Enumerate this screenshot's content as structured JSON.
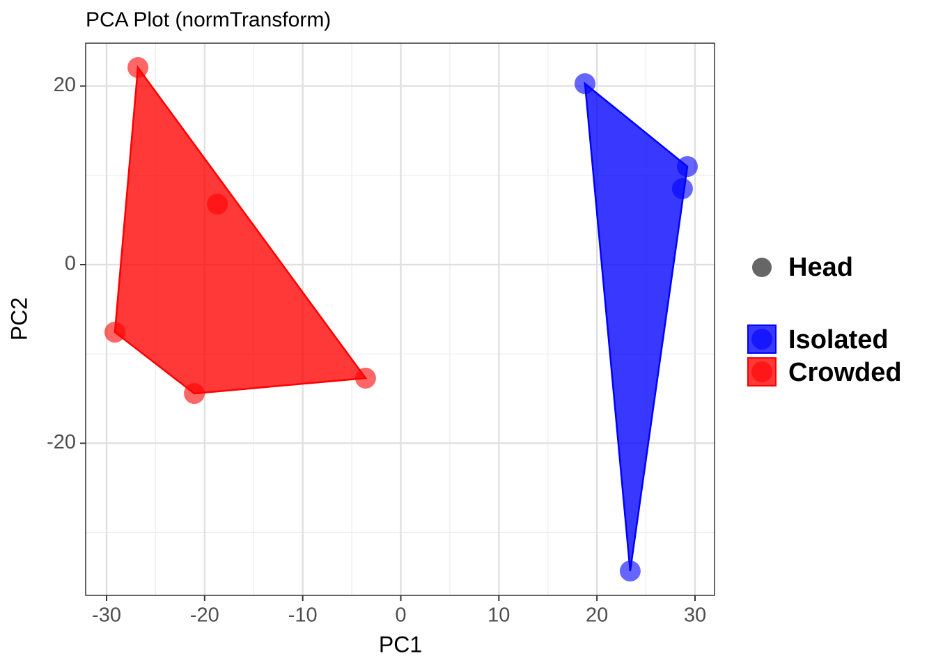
{
  "chart_data": {
    "type": "scatter",
    "title": "PCA Plot (normTransform)",
    "x_label": "PC1",
    "y_label": "PC2",
    "xlim": [
      -32.13,
      31.99
    ],
    "ylim": [
      -37.04,
      24.8
    ],
    "xticks": [
      -30,
      -20,
      -10,
      0,
      10,
      20,
      30
    ],
    "yticks": [
      -20,
      0,
      20
    ],
    "x_minor_ticks": [
      -25,
      -15,
      -5,
      5,
      15,
      25
    ],
    "y_minor_ticks": [
      -30,
      -10,
      10
    ],
    "grid": true,
    "hull": true,
    "legend_position": "right",
    "shape_legend": "Head",
    "shape_color": "#666666",
    "series": [
      {
        "name": "Isolated",
        "color": "#0000ff",
        "x": [
          18.78,
          29.22,
          28.72,
          23.39
        ],
        "y": [
          20.27,
          10.99,
          8.5,
          -34.31
        ]
      },
      {
        "name": "Crowded",
        "color": "#ff0000",
        "x": [
          -26.8,
          -18.7,
          -29.15,
          -21.05,
          -3.59
        ],
        "y": [
          22.07,
          6.78,
          -7.56,
          -14.43,
          -12.71
        ]
      }
    ]
  }
}
